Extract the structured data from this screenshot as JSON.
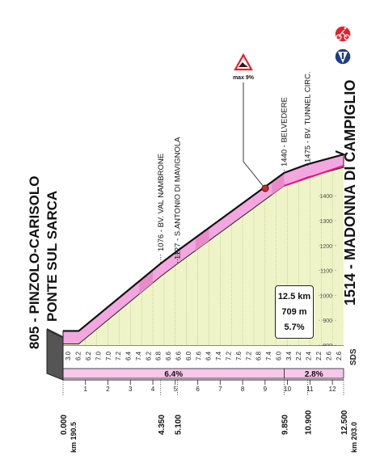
{
  "chart_data": {
    "type": "area",
    "start": {
      "elevation": "805",
      "name_line1": "PINZOLO-CARISOLO",
      "name_line2": "PONTE SUL SARCA"
    },
    "finish": {
      "label": "1514 - MADONNA DI CAMPIGLIO"
    },
    "x_ticks": [
      "1",
      "2",
      "3",
      "4",
      "5",
      "6",
      "7",
      "8",
      "9",
      "10",
      "11",
      "12"
    ],
    "y_ticks": [
      "800",
      "900",
      "1000",
      "1100",
      "1200",
      "1300",
      "1400"
    ],
    "distance_labels": [
      "0.000",
      "4.350",
      "5.100",
      "9.850",
      "10.900",
      "12.500"
    ],
    "km_labels": [
      "km 190.5",
      "km 203.0"
    ],
    "points": [
      {
        "name": "1076 - BV. VAL NAMBRONE",
        "km": 4.35
      },
      {
        "name": "1127 - S.ANTONIO DI MAVIGNOLA",
        "km": 5.1
      },
      {
        "name": "1440 - BELVEDERE",
        "km": 9.85
      },
      {
        "name": "1475 - BV. TUNNEL CIRC.",
        "km": 10.9
      }
    ],
    "max_grade_label": "max 9%",
    "max_grade_km": 9.3,
    "gradients": [
      "3.0",
      "6.2",
      "6.2",
      "7.0",
      "7.0",
      "7.2",
      "6.4",
      "7.4",
      "6.2",
      "6.8",
      "6.6",
      "6.6",
      "6.0",
      "7.6",
      "6.4",
      "7.4",
      "7.2",
      "7.6",
      "7.2",
      "6.8",
      "7.4",
      "6.0",
      "3.4",
      "2.2",
      "2.4",
      "2.2",
      "2.6",
      "2.6"
    ],
    "segment_grades": [
      {
        "label": "6.4%",
        "from_km": 0,
        "to_km": 9.85
      },
      {
        "label": "2.8%",
        "from_km": 9.85,
        "to_km": 12.5
      }
    ],
    "profile": [
      [
        0,
        805
      ],
      [
        0.7,
        805
      ],
      [
        4.35,
        1076
      ],
      [
        5.1,
        1127
      ],
      [
        9.85,
        1440
      ],
      [
        10.9,
        1475
      ],
      [
        12.5,
        1514
      ]
    ],
    "ylim": [
      760,
      1560
    ],
    "xlim": [
      0,
      12.5
    ],
    "stats": {
      "length": "12.5 km",
      "gain": "709 m",
      "average": "5.7%"
    },
    "icons": [
      "stage-finish-icon",
      "cycling-icon",
      "warning-icon"
    ],
    "colors": {
      "fill": "#eef4c8",
      "profile": "#f3a6df",
      "profile_dark": "#e98acb",
      "finish_line": "#e0178a",
      "grade_bar": "#f6c7ea"
    }
  }
}
